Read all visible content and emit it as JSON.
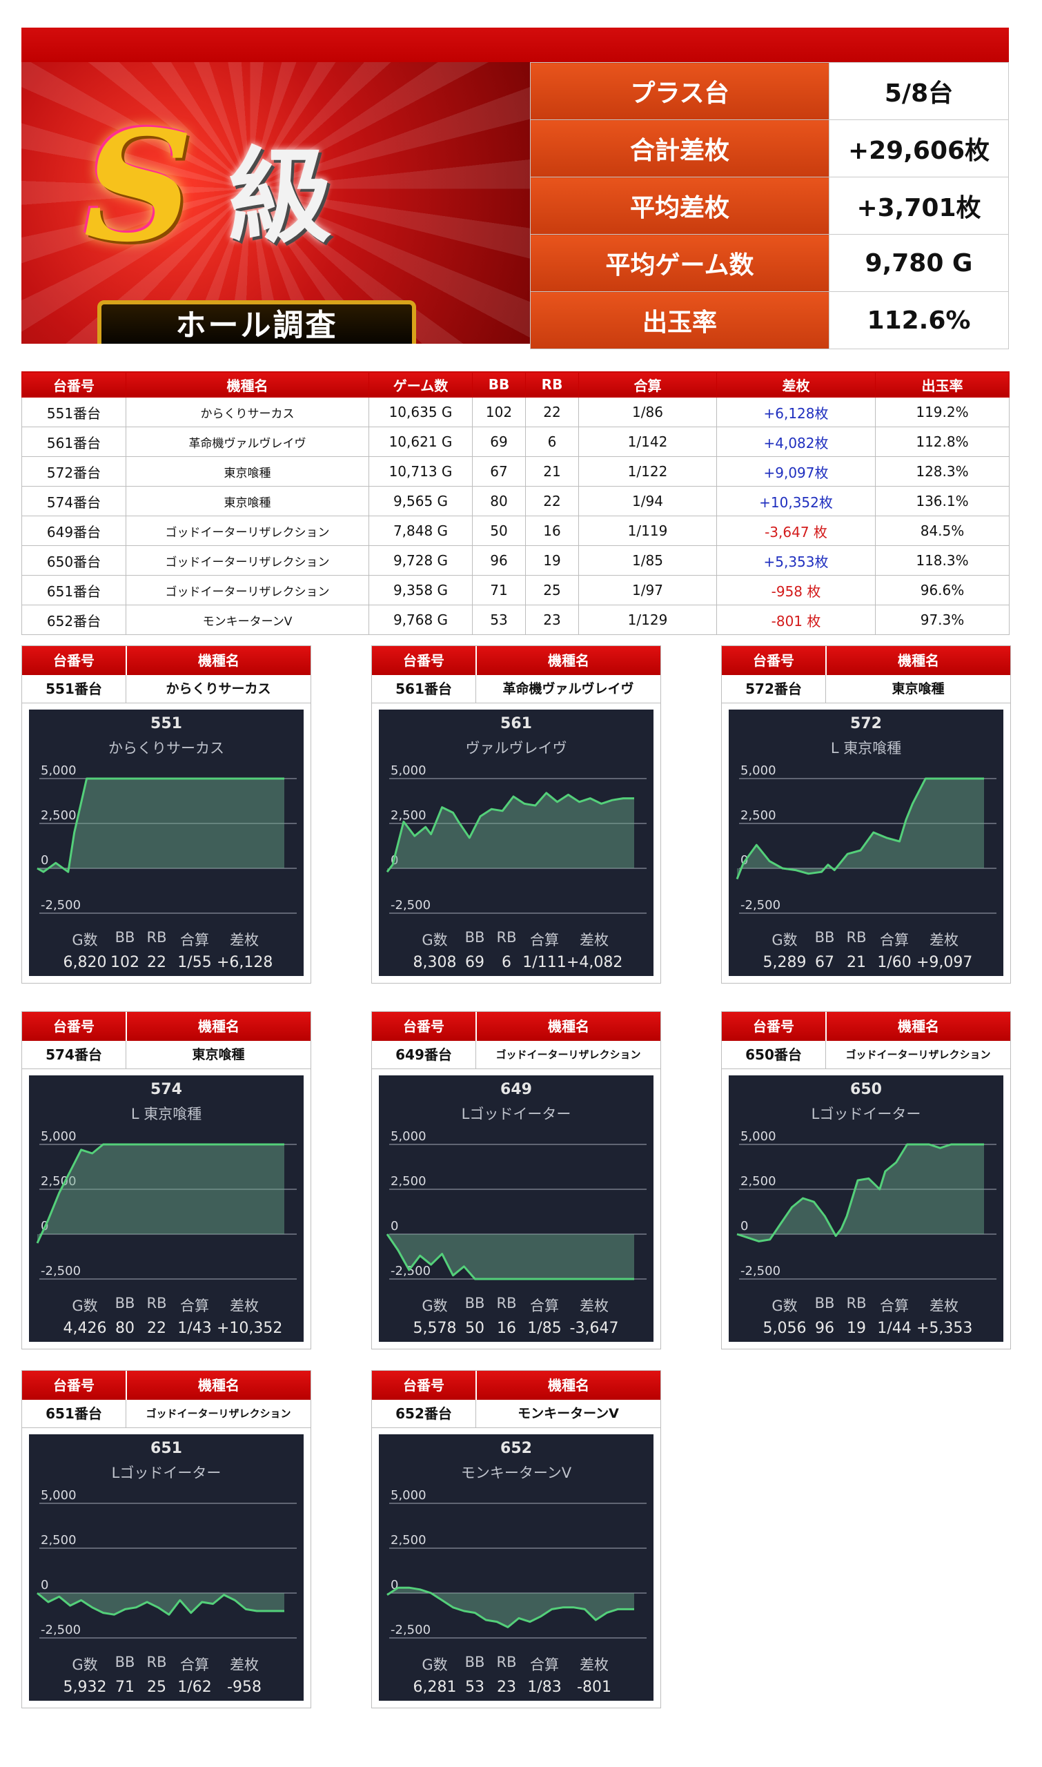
{
  "summary": [
    {
      "label": "プラス台",
      "value": "5/8台"
    },
    {
      "label": "合計差枚",
      "value": "+29,606枚"
    },
    {
      "label": "平均差枚",
      "value": "+3,701枚"
    },
    {
      "label": "平均ゲーム数",
      "value": "9,780 G"
    },
    {
      "label": "出玉率",
      "value": "112.6%"
    }
  ],
  "banner": {
    "letter": "S",
    "kanji": "級",
    "ribbon": "ホール調査"
  },
  "table": {
    "headers": [
      "台番号",
      "機種名",
      "ゲーム数",
      "BB",
      "RB",
      "合算",
      "差枚",
      "出玉率"
    ],
    "rows": [
      {
        "no": "551番台",
        "kishu": "からくりサーカス",
        "games": "10,635 G",
        "bb": "102",
        "rb": "22",
        "gassan": "1/86",
        "samai": "+6,128枚",
        "sign": "plus",
        "rate": "119.2%"
      },
      {
        "no": "561番台",
        "kishu": "革命機ヴァルヴレイヴ",
        "games": "10,621 G",
        "bb": "69",
        "rb": "6",
        "gassan": "1/142",
        "samai": "+4,082枚",
        "sign": "plus",
        "rate": "112.8%"
      },
      {
        "no": "572番台",
        "kishu": "東京喰種",
        "games": "10,713 G",
        "bb": "67",
        "rb": "21",
        "gassan": "1/122",
        "samai": "+9,097枚",
        "sign": "plus",
        "rate": "128.3%"
      },
      {
        "no": "574番台",
        "kishu": "東京喰種",
        "games": "9,565 G",
        "bb": "80",
        "rb": "22",
        "gassan": "1/94",
        "samai": "+10,352枚",
        "sign": "plus",
        "rate": "136.1%"
      },
      {
        "no": "649番台",
        "kishu": "ゴッドイーターリザレクション",
        "games": "7,848 G",
        "bb": "50",
        "rb": "16",
        "gassan": "1/119",
        "samai": "-3,647 枚",
        "sign": "minus",
        "rate": "84.5%"
      },
      {
        "no": "650番台",
        "kishu": "ゴッドイーターリザレクション",
        "games": "9,728 G",
        "bb": "96",
        "rb": "19",
        "gassan": "1/85",
        "samai": "+5,353枚",
        "sign": "plus",
        "rate": "118.3%"
      },
      {
        "no": "651番台",
        "kishu": "ゴッドイーターリザレクション",
        "games": "9,358 G",
        "bb": "71",
        "rb": "25",
        "gassan": "1/97",
        "samai": "-958 枚",
        "sign": "minus",
        "rate": "96.6%"
      },
      {
        "no": "652番台",
        "kishu": "モンキーターンV",
        "games": "9,768 G",
        "bb": "53",
        "rb": "23",
        "gassan": "1/129",
        "samai": "-801 枚",
        "sign": "minus",
        "rate": "97.3%"
      }
    ]
  },
  "cards_header": {
    "col1": "台番号",
    "col2": "機種名"
  },
  "stat_headers": [
    "G数",
    "BB",
    "RB",
    "合算",
    "差枚"
  ],
  "chart_axis": {
    "ticks": [
      5000,
      2500,
      0,
      -2500
    ],
    "tick_labels": [
      "5,000",
      "2,500",
      "0",
      "-2,500"
    ],
    "ylim": [
      -2500,
      5000
    ]
  },
  "cards": [
    {
      "no": "551番台",
      "kishu": "からくりサーカス",
      "num": "551",
      "name": "からくりサーカス",
      "stats": [
        "6,820",
        "102",
        "22",
        "1/55",
        "+6,128"
      ],
      "points": [
        [
          0,
          0
        ],
        [
          1,
          -200
        ],
        [
          3,
          300
        ],
        [
          5,
          -200
        ],
        [
          6,
          2000
        ],
        [
          8,
          5000
        ],
        [
          40,
          5000
        ]
      ]
    },
    {
      "no": "561番台",
      "kishu": "革命機ヴァルヴレイヴ",
      "num": "561",
      "name": "ヴァルヴレイヴ",
      "stats": [
        "8,308",
        "69",
        "6",
        "1/111",
        "+4,082"
      ],
      "points": [
        [
          0,
          -200
        ],
        [
          1,
          200
        ],
        [
          3,
          2600
        ],
        [
          5,
          1800
        ],
        [
          7,
          2300
        ],
        [
          8,
          1900
        ],
        [
          10,
          3400
        ],
        [
          12,
          3100
        ],
        [
          13,
          2600
        ],
        [
          15,
          1700
        ],
        [
          17,
          2900
        ],
        [
          19,
          3300
        ],
        [
          21,
          3200
        ],
        [
          23,
          4000
        ],
        [
          25,
          3600
        ],
        [
          27,
          3500
        ],
        [
          29,
          4200
        ],
        [
          31,
          3700
        ],
        [
          33,
          4100
        ],
        [
          35,
          3700
        ],
        [
          37,
          3900
        ],
        [
          39,
          3600
        ],
        [
          41,
          3800
        ],
        [
          43,
          3900
        ],
        [
          45,
          3900
        ]
      ]
    },
    {
      "no": "572番台",
      "kishu": "東京喰種",
      "num": "572",
      "name": "L 東京喰種",
      "stats": [
        "5,289",
        "67",
        "21",
        "1/60",
        "+9,097"
      ],
      "points": [
        [
          0,
          -600
        ],
        [
          1,
          300
        ],
        [
          3,
          1300
        ],
        [
          5,
          400
        ],
        [
          7,
          0
        ],
        [
          9,
          -100
        ],
        [
          11,
          -300
        ],
        [
          13,
          -200
        ],
        [
          14,
          200
        ],
        [
          15,
          -100
        ],
        [
          17,
          800
        ],
        [
          19,
          1000
        ],
        [
          21,
          2000
        ],
        [
          23,
          1700
        ],
        [
          25,
          1500
        ],
        [
          26,
          2700
        ],
        [
          27,
          3600
        ],
        [
          29,
          5000
        ],
        [
          38,
          5000
        ]
      ]
    },
    {
      "no": "574番台",
      "kishu": "東京喰種",
      "num": "574",
      "name": "L 東京喰種",
      "stats": [
        "4,426",
        "80",
        "22",
        "1/43",
        "+10,352"
      ],
      "points": [
        [
          0,
          -500
        ],
        [
          2,
          800
        ],
        [
          4,
          2300
        ],
        [
          6,
          3500
        ],
        [
          8,
          4700
        ],
        [
          10,
          4500
        ],
        [
          12,
          5000
        ],
        [
          45,
          5000
        ]
      ]
    },
    {
      "no": "649番台",
      "kishu": "ゴッドイーターリザレクション",
      "num": "649",
      "name": "Lゴッドイーター",
      "stats": [
        "5,578",
        "50",
        "16",
        "1/85",
        "-3,647"
      ],
      "points": [
        [
          0,
          0
        ],
        [
          2,
          -900
        ],
        [
          4,
          -2000
        ],
        [
          6,
          -1200
        ],
        [
          8,
          -1700
        ],
        [
          10,
          -1100
        ],
        [
          12,
          -2300
        ],
        [
          14,
          -1800
        ],
        [
          16,
          -2500
        ],
        [
          45,
          -2500
        ]
      ]
    },
    {
      "no": "650番台",
      "kishu": "ゴッドイーターリザレクション",
      "num": "650",
      "name": "Lゴッドイーター",
      "stats": [
        "5,056",
        "96",
        "19",
        "1/44",
        "+5,353"
      ],
      "points": [
        [
          0,
          0
        ],
        [
          2,
          -200
        ],
        [
          4,
          -400
        ],
        [
          6,
          -300
        ],
        [
          8,
          600
        ],
        [
          10,
          1500
        ],
        [
          12,
          2000
        ],
        [
          14,
          1800
        ],
        [
          16,
          1000
        ],
        [
          18,
          -100
        ],
        [
          19,
          300
        ],
        [
          20,
          1000
        ],
        [
          22,
          3000
        ],
        [
          24,
          3100
        ],
        [
          26,
          2500
        ],
        [
          27,
          3500
        ],
        [
          29,
          4000
        ],
        [
          31,
          5000
        ],
        [
          35,
          5000
        ],
        [
          37,
          4800
        ],
        [
          39,
          5000
        ],
        [
          45,
          5000
        ]
      ]
    },
    {
      "no": "651番台",
      "kishu": "ゴッドイーターリザレクション",
      "num": "651",
      "name": "Lゴッドイーター",
      "stats": [
        "5,932",
        "71",
        "25",
        "1/62",
        "-958"
      ],
      "points": [
        [
          0,
          0
        ],
        [
          2,
          -500
        ],
        [
          4,
          -200
        ],
        [
          6,
          -700
        ],
        [
          8,
          -400
        ],
        [
          10,
          -800
        ],
        [
          12,
          -1100
        ],
        [
          14,
          -1200
        ],
        [
          16,
          -900
        ],
        [
          18,
          -800
        ],
        [
          20,
          -500
        ],
        [
          22,
          -800
        ],
        [
          24,
          -1200
        ],
        [
          26,
          -400
        ],
        [
          28,
          -1100
        ],
        [
          30,
          -500
        ],
        [
          32,
          -600
        ],
        [
          34,
          -100
        ],
        [
          36,
          -400
        ],
        [
          38,
          -900
        ],
        [
          40,
          -1000
        ],
        [
          42,
          -1000
        ],
        [
          45,
          -1000
        ]
      ]
    },
    {
      "no": "652番台",
      "kishu": "モンキーターンV",
      "num": "652",
      "name": "モンキーターンV",
      "stats": [
        "6,281",
        "53",
        "23",
        "1/83",
        "-801"
      ],
      "points": [
        [
          0,
          -100
        ],
        [
          2,
          300
        ],
        [
          4,
          300
        ],
        [
          6,
          200
        ],
        [
          8,
          0
        ],
        [
          10,
          -400
        ],
        [
          12,
          -800
        ],
        [
          14,
          -1000
        ],
        [
          16,
          -1100
        ],
        [
          18,
          -1500
        ],
        [
          20,
          -1600
        ],
        [
          22,
          -1900
        ],
        [
          24,
          -1400
        ],
        [
          26,
          -1600
        ],
        [
          28,
          -1300
        ],
        [
          30,
          -900
        ],
        [
          32,
          -800
        ],
        [
          34,
          -800
        ],
        [
          36,
          -900
        ],
        [
          38,
          -1500
        ],
        [
          40,
          -1100
        ],
        [
          42,
          -900
        ],
        [
          45,
          -900
        ]
      ]
    }
  ]
}
